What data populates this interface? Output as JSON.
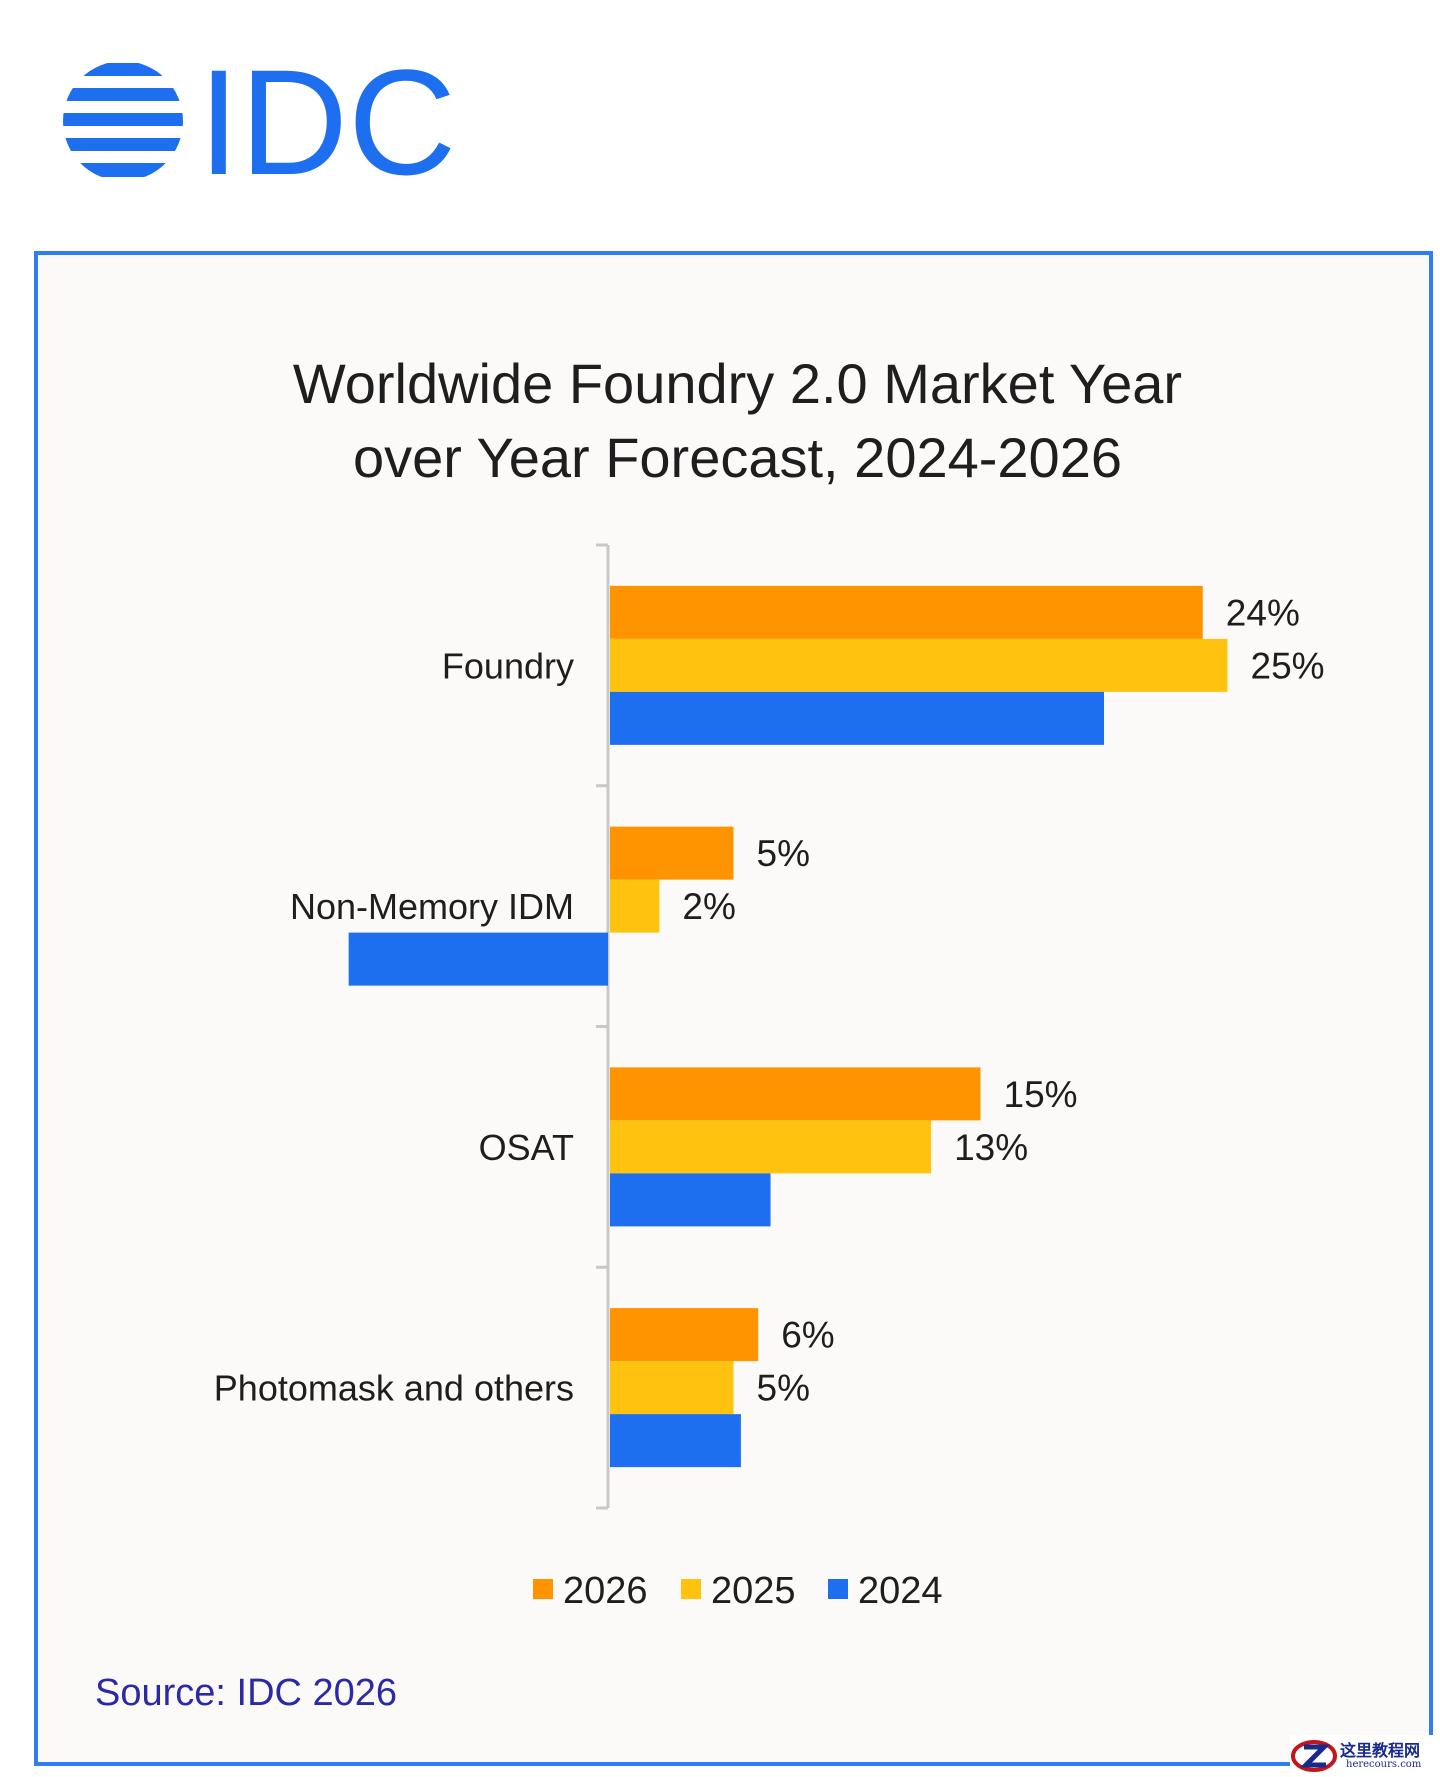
{
  "brand": {
    "logo_text": "IDC",
    "logo_color": "#1e6ff0"
  },
  "source_note": "Source: IDC 2026",
  "watermark": {
    "text": "这里教程网",
    "url": "herecours.com"
  },
  "chart_data": {
    "type": "bar",
    "orientation": "horizontal",
    "title_lines": [
      "Worldwide Foundry 2.0 Market Year",
      "over Year Forecast, 2024-2026"
    ],
    "categories": [
      "Foundry",
      "Non-Memory IDM",
      "OSAT",
      "Photomask and others"
    ],
    "series": [
      {
        "name": "2026",
        "color": "#ff9400",
        "values": [
          24,
          5,
          15,
          6
        ],
        "labels": [
          "24%",
          "5%",
          "15%",
          "6%"
        ]
      },
      {
        "name": "2025",
        "color": "#ffc20e",
        "values": [
          25,
          2,
          13,
          5
        ],
        "labels": [
          "25%",
          "2%",
          "13%",
          "5%"
        ]
      },
      {
        "name": "2024",
        "color": "#1e6ff0",
        "values": [
          20,
          -10.5,
          6.5,
          5.3
        ],
        "labels": [
          "",
          "",
          "",
          ""
        ]
      }
    ],
    "xlim": [
      -11,
      30
    ],
    "grid": false,
    "legend_position": "bottom"
  }
}
